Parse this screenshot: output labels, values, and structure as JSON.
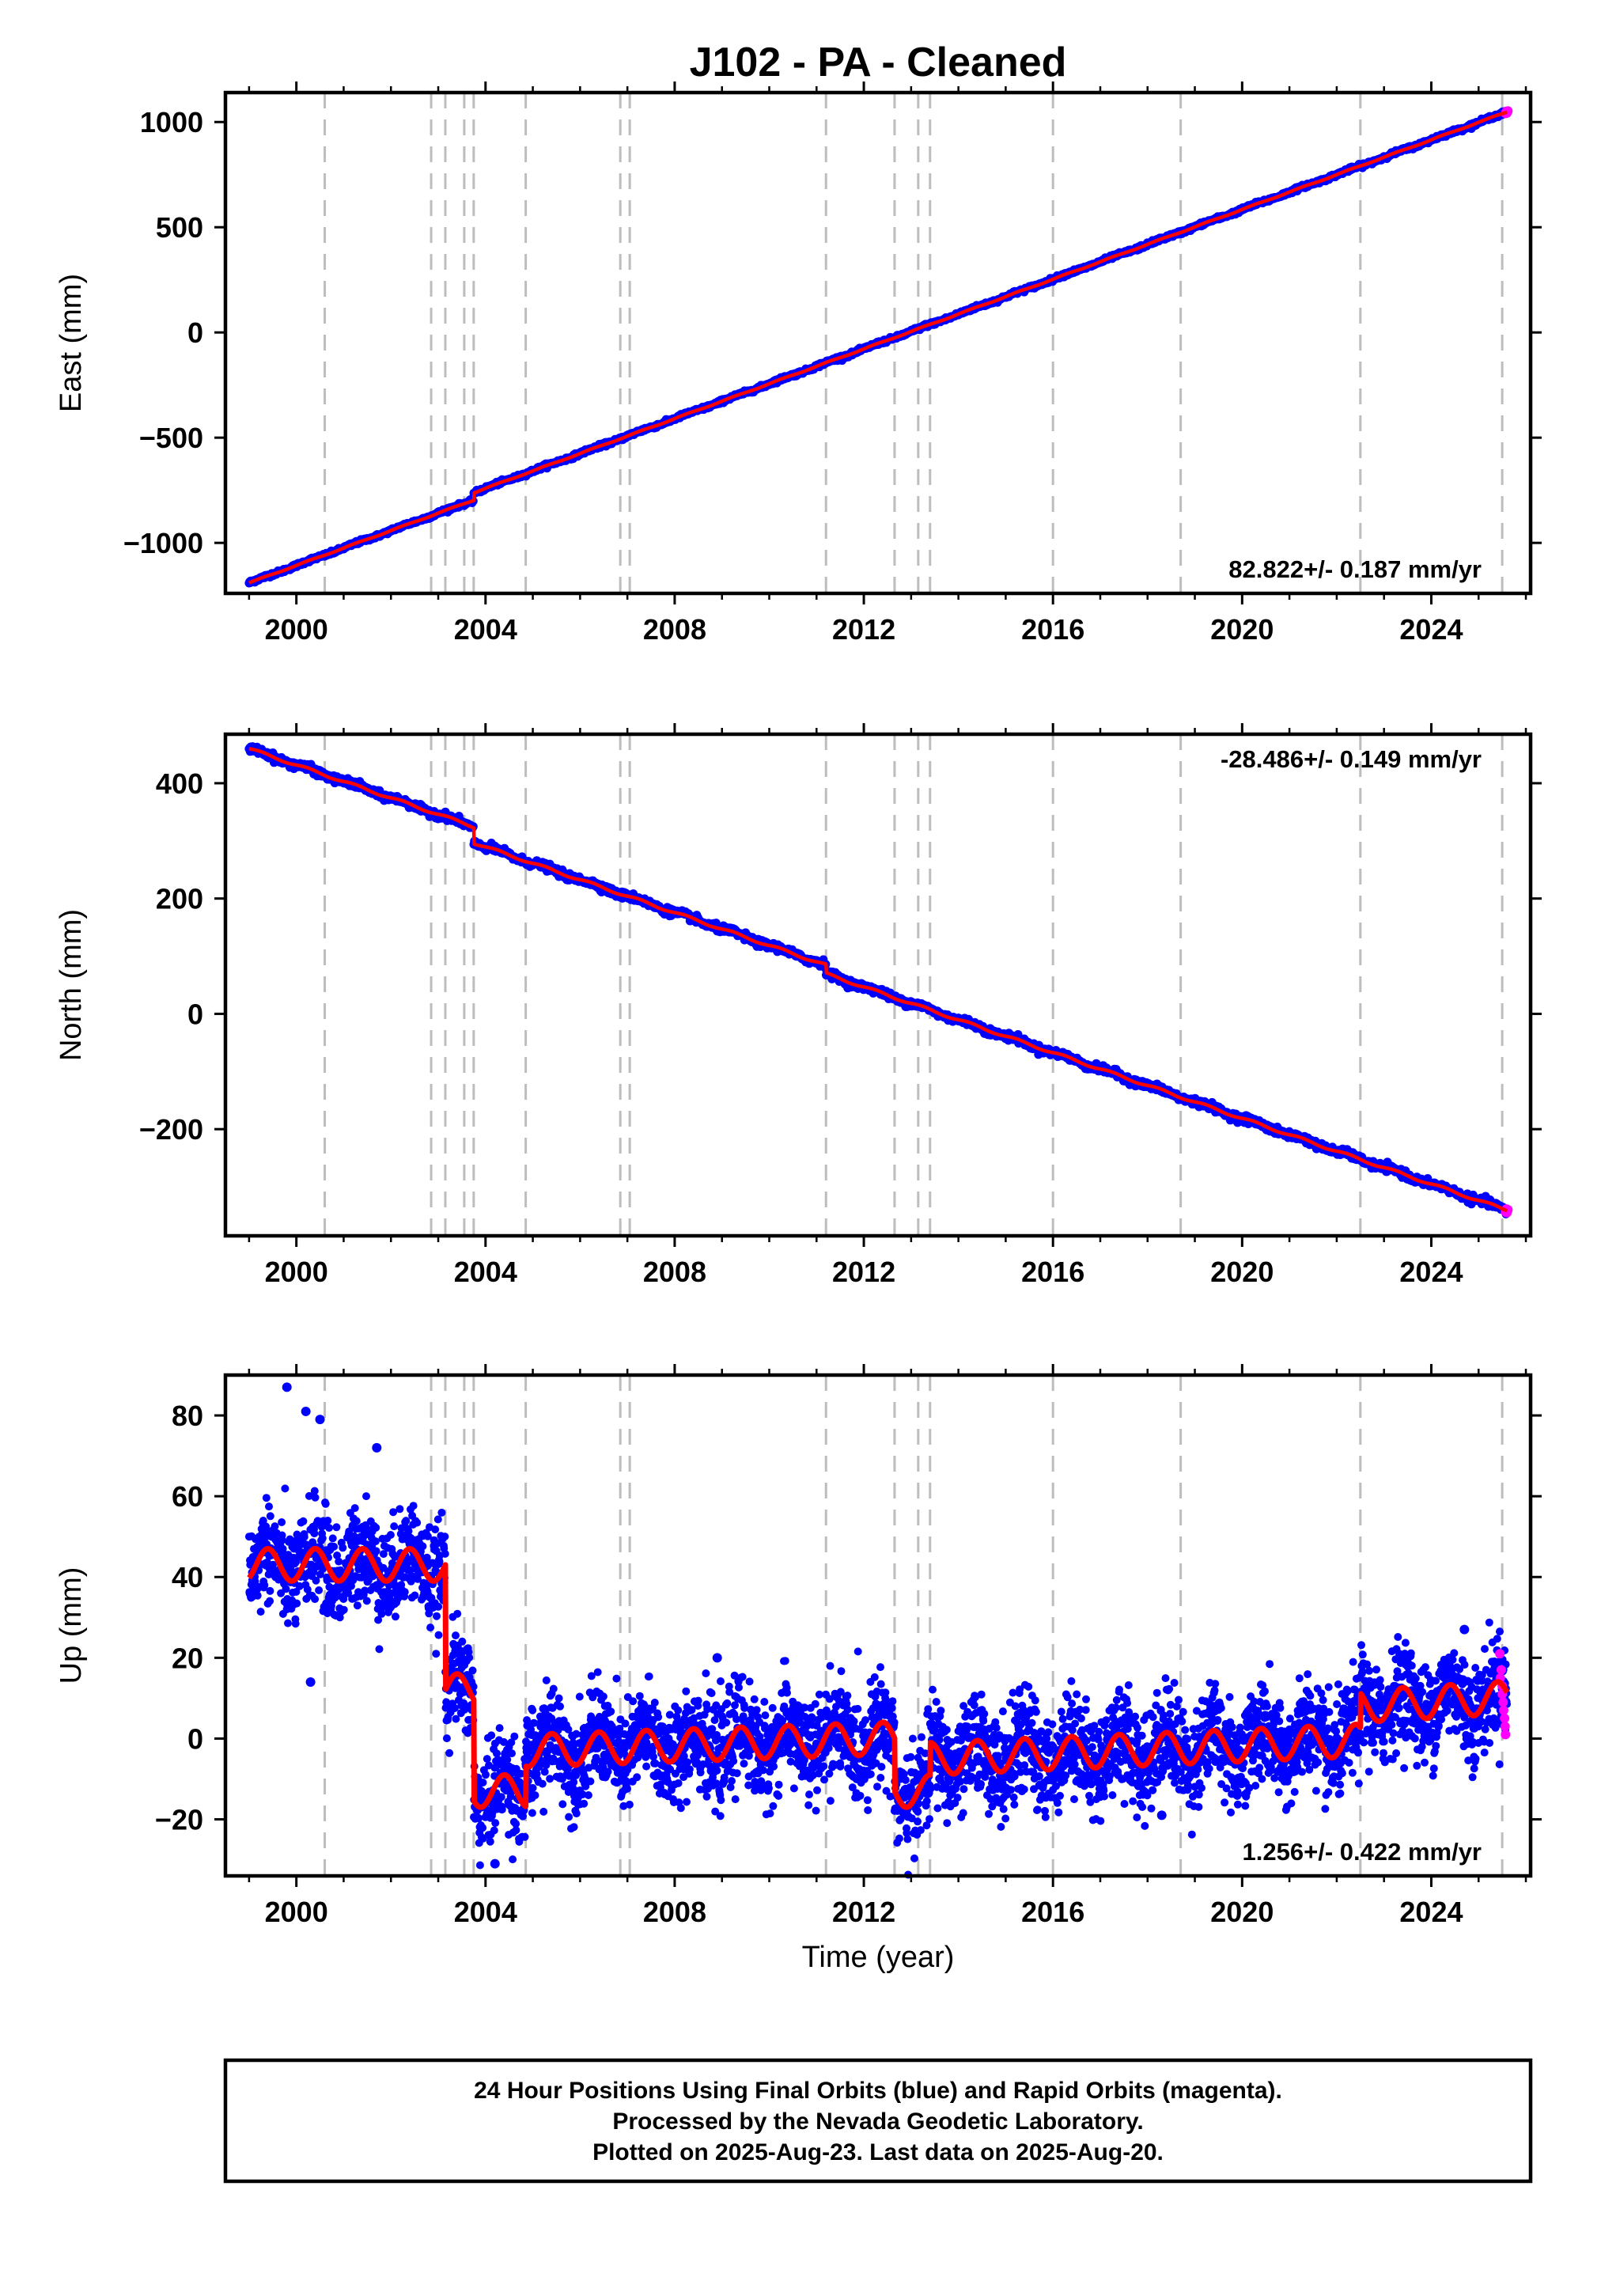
{
  "title": "J102  - PA - Cleaned",
  "colors": {
    "final_orbits": "#0000ff",
    "rapid_orbits": "#ff00ff",
    "model": "#ff0000",
    "event_lines": "#bdbdbd",
    "frame": "#000000"
  },
  "event_lines_years": [
    2000.6,
    2002.85,
    2003.15,
    2003.55,
    2003.75,
    2004.85,
    2006.85,
    2007.05,
    2011.2,
    2012.65,
    2013.15,
    2013.4,
    2016.0,
    2018.7,
    2022.5,
    2025.5
  ],
  "chart_data": [
    {
      "type": "scatter",
      "name": "east",
      "ylabel": "East (mm)",
      "xlim": [
        1998.5,
        2026.1
      ],
      "ylim": [
        -1240,
        1140
      ],
      "xticks": [
        2000,
        2004,
        2008,
        2012,
        2016,
        2020,
        2024
      ],
      "yticks": [
        -1000,
        -500,
        0,
        500,
        1000
      ],
      "ytick_labels": [
        "−1000",
        "−500",
        "0",
        "500",
        "1000"
      ],
      "rate_text": "82.822+/- 0.187 mm/yr",
      "rate_position": "bottom-right",
      "start_year": 1999.0,
      "end_year": 2025.6,
      "start_value": -1190,
      "rate_mm_per_yr": 82.822,
      "offsets": [
        {
          "year": 2003.75,
          "size": 35
        }
      ],
      "seasonal_amplitude": 2,
      "scatter_noise": 4
    },
    {
      "type": "scatter",
      "name": "north",
      "ylabel": "North (mm)",
      "xlim": [
        1998.5,
        2026.1
      ],
      "ylim": [
        -385,
        485
      ],
      "xticks": [
        2000,
        2004,
        2008,
        2012,
        2016,
        2020,
        2024
      ],
      "yticks": [
        -200,
        0,
        200,
        400
      ],
      "ytick_labels": [
        "−200",
        "0",
        "200",
        "400"
      ],
      "rate_text": "-28.486+/- 0.149 mm/yr",
      "rate_position": "top-right",
      "start_year": 1999.0,
      "end_year": 2025.6,
      "start_value": 460,
      "rate_mm_per_yr": -28.486,
      "offsets": [
        {
          "year": 2003.75,
          "size": -28
        },
        {
          "year": 2011.2,
          "size": -15
        }
      ],
      "seasonal_amplitude": 2,
      "scatter_noise": 3
    },
    {
      "type": "scatter",
      "name": "up",
      "ylabel": "Up (mm)",
      "xlabel": "Time (year)",
      "xlim": [
        1998.5,
        2026.1
      ],
      "ylim": [
        -34,
        90
      ],
      "xticks": [
        2000,
        2004,
        2008,
        2012,
        2016,
        2020,
        2024
      ],
      "yticks": [
        -20,
        0,
        20,
        40,
        60,
        80
      ],
      "ytick_labels": [
        "−20",
        "0",
        "20",
        "40",
        "60",
        "80"
      ],
      "rate_text": "1.256+/- 0.422 mm/yr",
      "rate_position": "bottom-right",
      "model_segments": [
        {
          "from": 1999.0,
          "to": 2003.15,
          "level": 43,
          "amplitude": 4
        },
        {
          "from": 2003.15,
          "to": 2003.75,
          "level": 12,
          "amplitude": 4
        },
        {
          "from": 2003.75,
          "to": 2004.85,
          "level": -13,
          "amplitude": 4
        },
        {
          "from": 2004.85,
          "to": 2012.65,
          "level": -3,
          "amplitude": 4
        },
        {
          "from": 2012.65,
          "to": 2013.4,
          "level": -13,
          "amplitude": 4
        },
        {
          "from": 2013.4,
          "to": 2022.5,
          "level": -5,
          "amplitude": 4
        },
        {
          "from": 2022.5,
          "to": 2025.6,
          "level": 8,
          "amplitude": 4
        }
      ],
      "segment_trends": [
        0,
        0,
        0,
        0.4,
        0,
        0.5,
        0.7
      ],
      "scatter_noise": 6,
      "outliers": [
        [
          1999.8,
          87
        ],
        [
          2000.2,
          81
        ],
        [
          2000.5,
          79
        ],
        [
          2001.7,
          72
        ],
        [
          2000.3,
          14
        ],
        [
          2004.2,
          -31
        ],
        [
          2008.9,
          20
        ],
        [
          2018.3,
          -19
        ],
        [
          2024.7,
          27
        ]
      ],
      "rapid_points": [
        [
          2025.45,
          21
        ],
        [
          2025.48,
          17
        ],
        [
          2025.5,
          13
        ],
        [
          2025.52,
          9
        ],
        [
          2025.55,
          5
        ],
        [
          2025.57,
          1
        ],
        [
          2025.5,
          11
        ],
        [
          2025.53,
          7
        ],
        [
          2025.46,
          15
        ],
        [
          2025.56,
          3
        ]
      ]
    }
  ],
  "footer": {
    "line1": "24 Hour Positions Using Final Orbits (blue) and Rapid Orbits (magenta).",
    "line2": "Processed by the Nevada Geodetic Laboratory.",
    "line3": "Plotted on 2025-Aug-23. Last data on 2025-Aug-20."
  }
}
